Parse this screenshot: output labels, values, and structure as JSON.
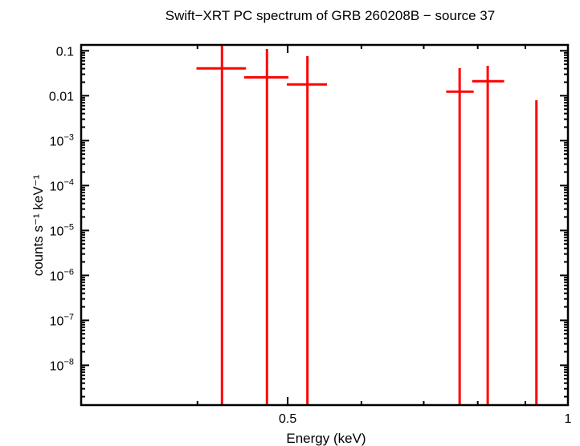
{
  "chart_data": {
    "type": "scatter",
    "title": "Swift−XRT PC spectrum of GRB 260208B − source 37",
    "xlabel": "Energy (keV)",
    "ylabel": "counts s⁻¹ keV⁻¹",
    "x_scale": "log",
    "y_scale": "log",
    "xlim": [
      0.3,
      1.0
    ],
    "ylim": [
      1.3e-09,
      0.135
    ],
    "x_tick_labels": [
      {
        "value": 0.5,
        "label": "0.5"
      },
      {
        "value": 1,
        "label": "1"
      }
    ],
    "y_tick_labels": [
      {
        "value": 0.1,
        "label": "0.1"
      },
      {
        "value": 0.01,
        "label": "0.01"
      },
      {
        "value": 0.001,
        "base": "10",
        "exp": "−3"
      },
      {
        "value": 0.0001,
        "base": "10",
        "exp": "−4"
      },
      {
        "value": 1e-05,
        "base": "10",
        "exp": "−5"
      },
      {
        "value": 1e-06,
        "base": "10",
        "exp": "−6"
      },
      {
        "value": 1e-07,
        "base": "10",
        "exp": "−7"
      },
      {
        "value": 1e-08,
        "base": "10",
        "exp": "−8"
      }
    ],
    "grid": false,
    "color": "#ff0000",
    "points": [
      {
        "x": 0.425,
        "x_low": 0.399,
        "x_high": 0.451,
        "y": 0.0405,
        "y_low": null,
        "y_high": null
      },
      {
        "x": 0.475,
        "x_low": 0.449,
        "x_high": 0.501,
        "y": 0.0257,
        "y_low": null,
        "y_high": 0.11
      },
      {
        "x": 0.525,
        "x_low": 0.499,
        "x_high": 0.551,
        "y": 0.0178,
        "y_low": null,
        "y_high": 0.0759
      },
      {
        "x": 0.765,
        "x_low": 0.74,
        "x_high": 0.792,
        "y": 0.0123,
        "y_low": null,
        "y_high": 0.0409
      },
      {
        "x": 0.82,
        "x_low": 0.789,
        "x_high": 0.854,
        "y": 0.021,
        "y_low": null,
        "y_high": 0.0463
      },
      {
        "x": 0.925,
        "x_low": null,
        "x_high": null,
        "y": null,
        "y_low": null,
        "y_high": 0.0079
      }
    ]
  }
}
